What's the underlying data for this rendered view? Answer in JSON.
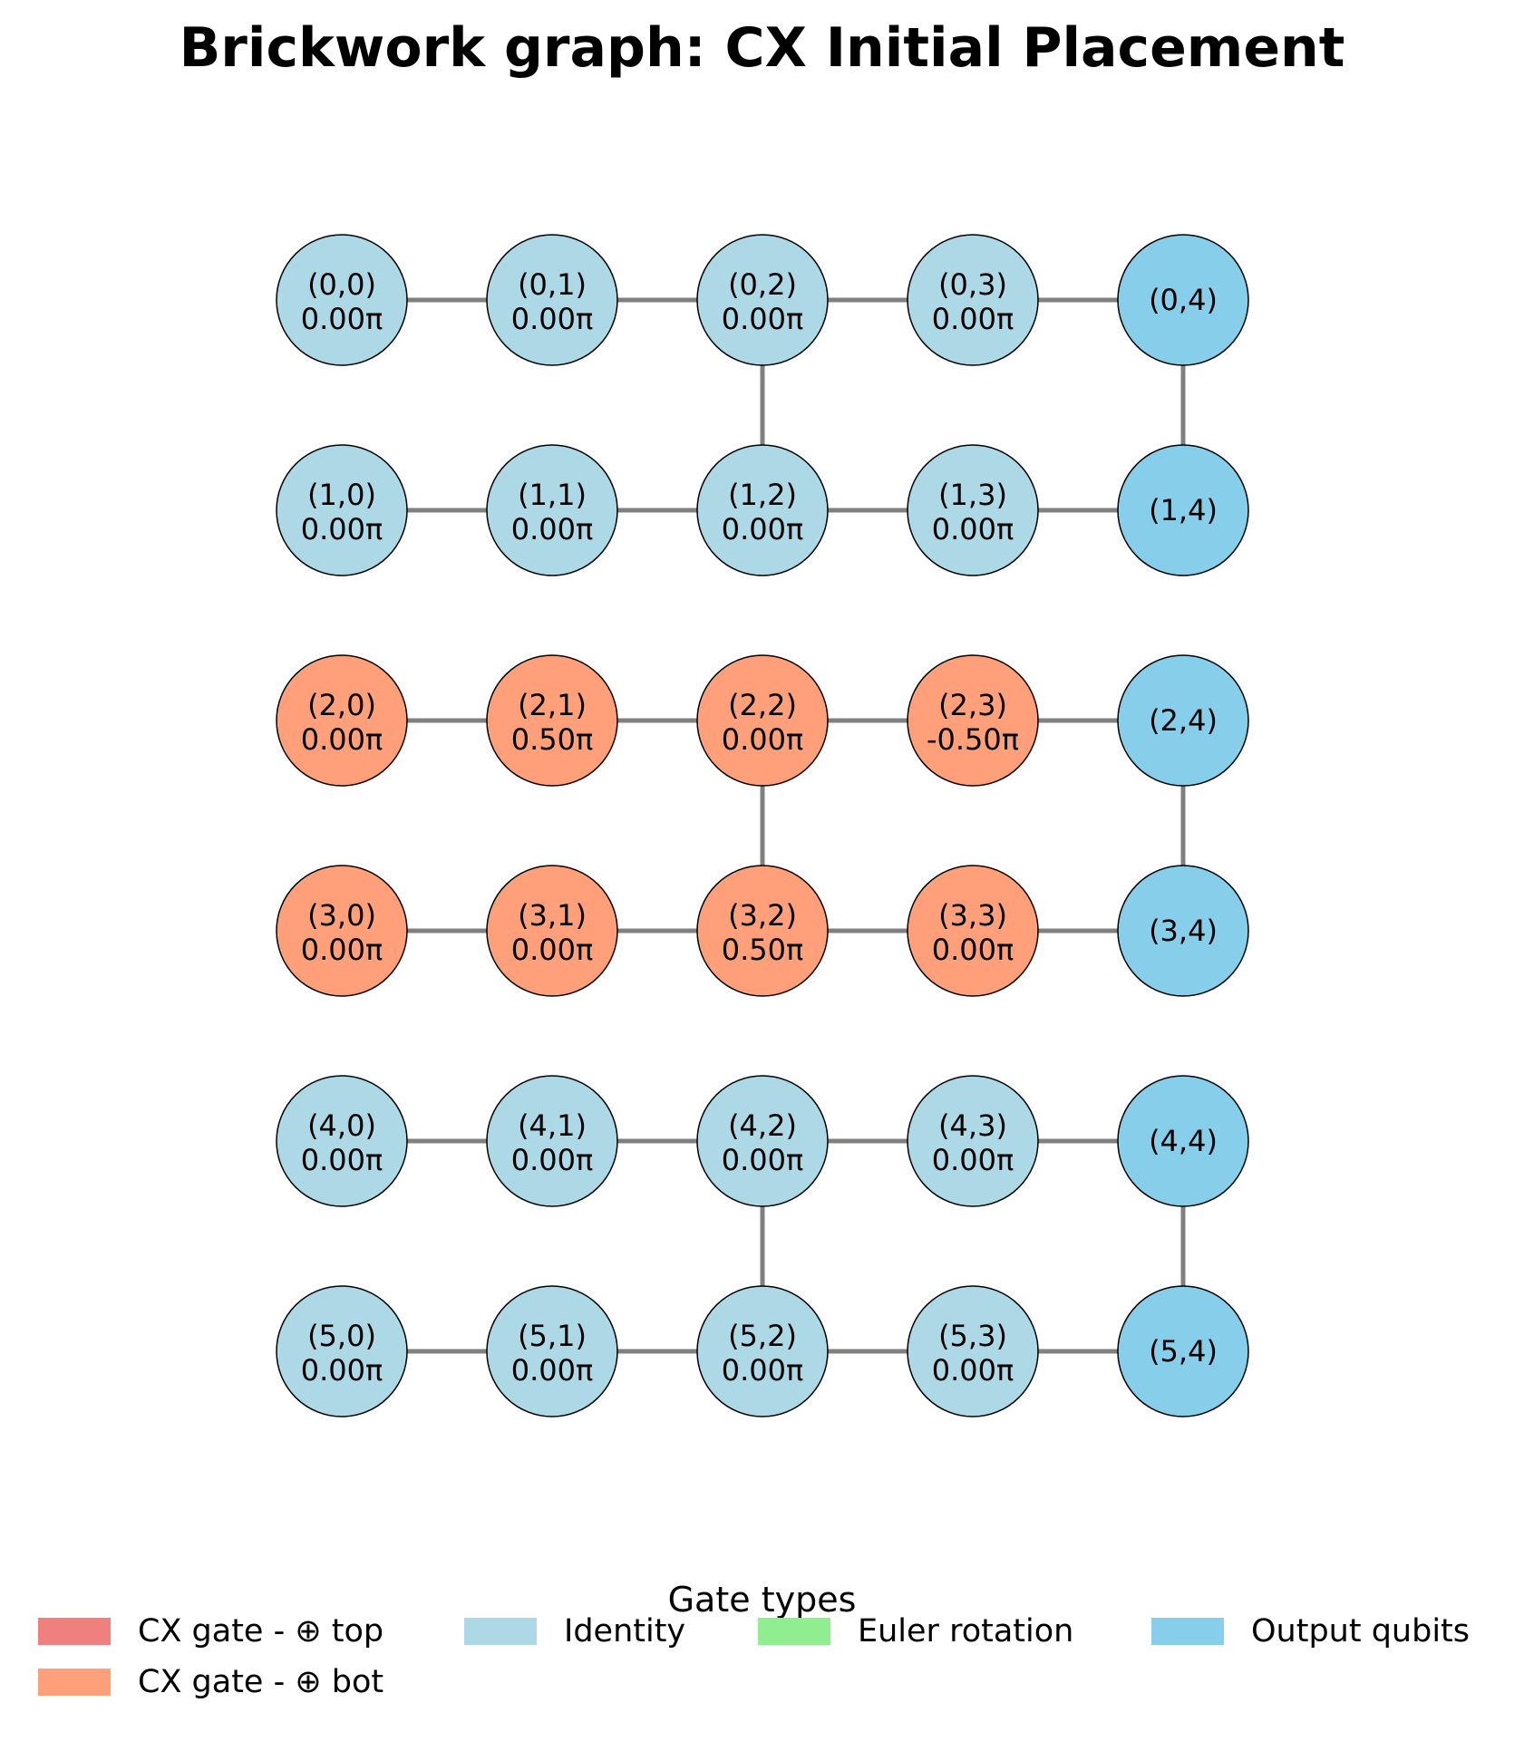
{
  "title": "Brickwork graph: CX Initial Placement",
  "colors": {
    "cx_top": "#f08080",
    "cx_bot": "#ffa07a",
    "identity": "#add8e6",
    "euler": "#90ee90",
    "output": "#87ceeb",
    "edge": "#808080"
  },
  "nodes": [
    {
      "id": "(0,0)",
      "angle": "0.00π",
      "type": "identity"
    },
    {
      "id": "(0,1)",
      "angle": "0.00π",
      "type": "identity"
    },
    {
      "id": "(0,2)",
      "angle": "0.00π",
      "type": "identity"
    },
    {
      "id": "(0,3)",
      "angle": "0.00π",
      "type": "identity"
    },
    {
      "id": "(0,4)",
      "angle": "",
      "type": "output"
    },
    {
      "id": "(1,0)",
      "angle": "0.00π",
      "type": "identity"
    },
    {
      "id": "(1,1)",
      "angle": "0.00π",
      "type": "identity"
    },
    {
      "id": "(1,2)",
      "angle": "0.00π",
      "type": "identity"
    },
    {
      "id": "(1,3)",
      "angle": "0.00π",
      "type": "identity"
    },
    {
      "id": "(1,4)",
      "angle": "",
      "type": "output"
    },
    {
      "id": "(2,0)",
      "angle": "0.00π",
      "type": "cx_bot"
    },
    {
      "id": "(2,1)",
      "angle": "0.50π",
      "type": "cx_bot"
    },
    {
      "id": "(2,2)",
      "angle": "0.00π",
      "type": "cx_bot"
    },
    {
      "id": "(2,3)",
      "angle": "-0.50π",
      "type": "cx_bot"
    },
    {
      "id": "(2,4)",
      "angle": "",
      "type": "output"
    },
    {
      "id": "(3,0)",
      "angle": "0.00π",
      "type": "cx_bot"
    },
    {
      "id": "(3,1)",
      "angle": "0.00π",
      "type": "cx_bot"
    },
    {
      "id": "(3,2)",
      "angle": "0.50π",
      "type": "cx_bot"
    },
    {
      "id": "(3,3)",
      "angle": "0.00π",
      "type": "cx_bot"
    },
    {
      "id": "(3,4)",
      "angle": "",
      "type": "output"
    },
    {
      "id": "(4,0)",
      "angle": "0.00π",
      "type": "identity"
    },
    {
      "id": "(4,1)",
      "angle": "0.00π",
      "type": "identity"
    },
    {
      "id": "(4,2)",
      "angle": "0.00π",
      "type": "identity"
    },
    {
      "id": "(4,3)",
      "angle": "0.00π",
      "type": "identity"
    },
    {
      "id": "(4,4)",
      "angle": "",
      "type": "output"
    },
    {
      "id": "(5,0)",
      "angle": "0.00π",
      "type": "identity"
    },
    {
      "id": "(5,1)",
      "angle": "0.00π",
      "type": "identity"
    },
    {
      "id": "(5,2)",
      "angle": "0.00π",
      "type": "identity"
    },
    {
      "id": "(5,3)",
      "angle": "0.00π",
      "type": "identity"
    },
    {
      "id": "(5,4)",
      "angle": "",
      "type": "output"
    }
  ],
  "vertical_edges": [
    [
      "(0,2)",
      "(1,2)"
    ],
    [
      "(0,4)",
      "(1,4)"
    ],
    [
      "(2,2)",
      "(3,2)"
    ],
    [
      "(2,4)",
      "(3,4)"
    ],
    [
      "(4,2)",
      "(5,2)"
    ],
    [
      "(4,4)",
      "(5,4)"
    ]
  ],
  "legend": {
    "title": "Gate types",
    "items": [
      {
        "label": "CX gate - ⊕ top",
        "type": "cx_top"
      },
      {
        "label": "CX gate - ⊕ bot",
        "type": "cx_bot"
      },
      {
        "label": "Identity",
        "type": "identity"
      },
      {
        "label": "Euler rotation",
        "type": "euler"
      },
      {
        "label": "Output qubits",
        "type": "output"
      }
    ]
  }
}
